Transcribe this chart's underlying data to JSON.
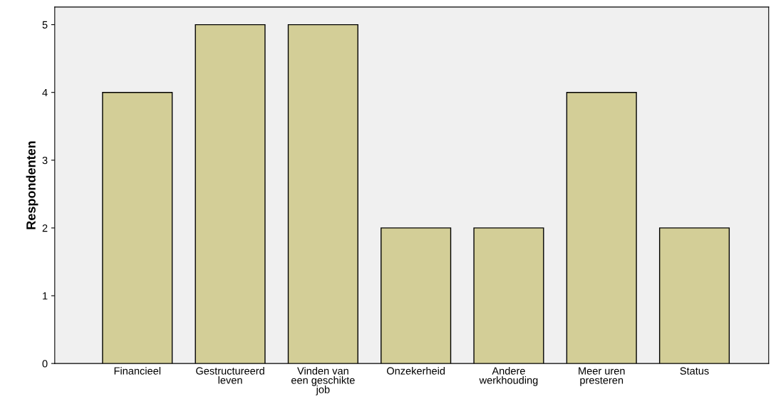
{
  "chart_data": {
    "type": "bar",
    "ylabel": "Respondenten",
    "categories": [
      "Financieel",
      "Gestructureerd\nleven",
      "Vinden van\neen geschikte\njob",
      "Onzekerheid",
      "Andere\nwerkhouding",
      "Meer uren\npresteren",
      "Status"
    ],
    "values": [
      4,
      5,
      5,
      2,
      2,
      4,
      2
    ],
    "color": "#d3ce97",
    "ylim": [
      0,
      5.26
    ],
    "yticks": [
      0,
      1,
      2,
      3,
      4,
      5
    ],
    "grid": false,
    "legend": false
  }
}
